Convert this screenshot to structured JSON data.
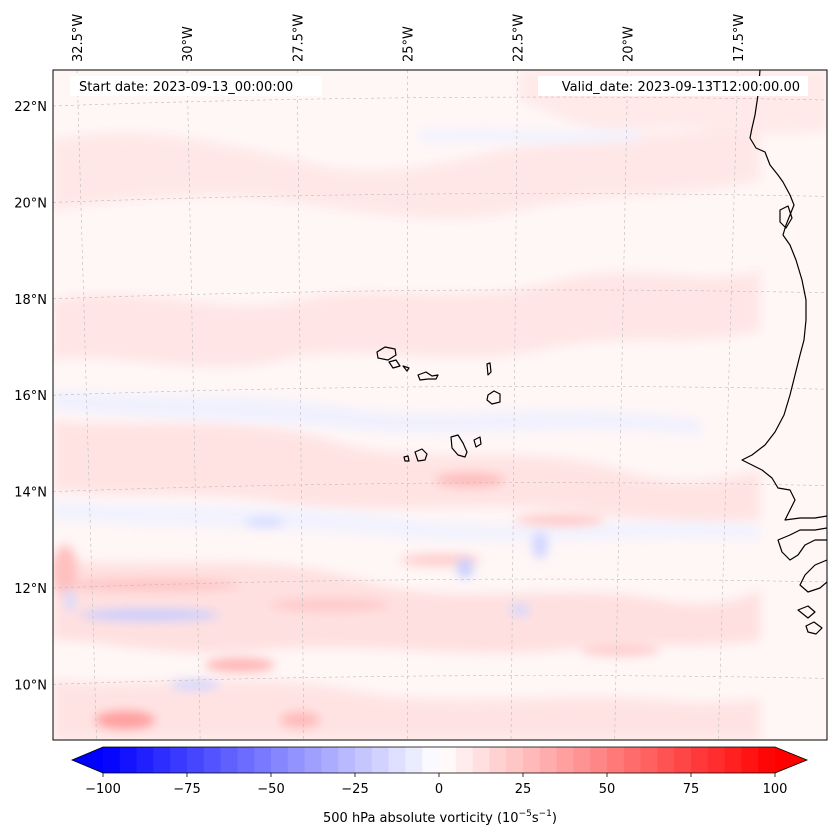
{
  "map": {
    "start_date_label": "Start date: 2023-09-13_00:00:00",
    "valid_date_label": "Valid_date: 2023-09-13T12:00:00.00",
    "projection": "lambert-conformal",
    "extent": {
      "lon_min": -33.0,
      "lon_max": -15.3,
      "lat_min": 9.0,
      "lat_max": 22.8
    },
    "lon_ticks": [
      {
        "label": "32.5°W",
        "lon": -32.5
      },
      {
        "label": "30°W",
        "lon": -30.0
      },
      {
        "label": "27.5°W",
        "lon": -27.5
      },
      {
        "label": "25°W",
        "lon": -25.0
      },
      {
        "label": "22.5°W",
        "lon": -22.5
      },
      {
        "label": "20°W",
        "lon": -20.0
      },
      {
        "label": "17.5°W",
        "lon": -17.5
      }
    ],
    "lat_ticks": [
      {
        "label": "22°N",
        "lat": 22
      },
      {
        "label": "20°N",
        "lat": 20
      },
      {
        "label": "18°N",
        "lat": 18
      },
      {
        "label": "16°N",
        "lat": 16
      },
      {
        "label": "14°N",
        "lat": 14
      },
      {
        "label": "12°N",
        "lat": 12
      },
      {
        "label": "10°N",
        "lat": 10
      }
    ],
    "features": [
      "Cape Verde islands",
      "West African coastline (Mauritania, Senegal, Gambia, Guinea-Bissau)"
    ]
  },
  "colorbar": {
    "label_prefix": "500 hPa absolute vorticity (10",
    "label_exp1": "−5",
    "label_mid": "s",
    "label_exp2": "−1",
    "label_suffix": ")",
    "min": -100,
    "max": 100,
    "levels": 40,
    "ticks": [
      {
        "value": -100,
        "label": "−100"
      },
      {
        "value": -75,
        "label": "−75"
      },
      {
        "value": -50,
        "label": "−50"
      },
      {
        "value": -25,
        "label": "−25"
      },
      {
        "value": 0,
        "label": "0"
      },
      {
        "value": 25,
        "label": "25"
      },
      {
        "value": 50,
        "label": "50"
      },
      {
        "value": 75,
        "label": "75"
      },
      {
        "value": 100,
        "label": "100"
      }
    ],
    "cmap": "bwr",
    "colors": {
      "negative": "#0000ff",
      "zero": "#ffffff",
      "positive": "#ff0000"
    }
  }
}
